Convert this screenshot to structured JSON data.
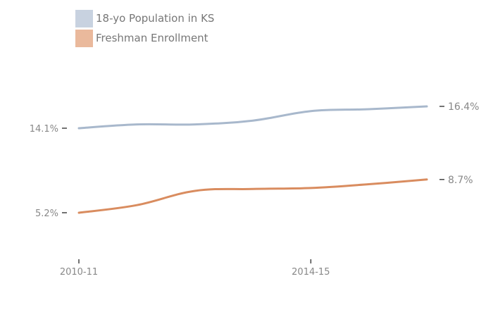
{
  "chart_data": {
    "type": "line",
    "title": "",
    "xlabel": "",
    "ylabel": "",
    "x": [
      2010,
      2011,
      2012,
      2013,
      2014,
      2015,
      2016
    ],
    "x_tick_values": [
      2010,
      2014
    ],
    "x_tick_labels": [
      "2010-11",
      "2014-15"
    ],
    "xlim": [
      2010,
      2016
    ],
    "y_tick_values": [
      5.2,
      14.1
    ],
    "y_tick_labels": [
      "5.2%",
      "14.1%"
    ],
    "ylim": [
      0.3,
      18.7
    ],
    "grid": false,
    "legend_position": "top-left",
    "series": [
      {
        "name": "18-yo Population in KS",
        "color": "#a8b8cc",
        "legend_color": "#c8d2e0",
        "values": [
          14.1,
          14.5,
          14.5,
          14.9,
          15.9,
          16.1,
          16.4
        ],
        "end_label": "16.4%"
      },
      {
        "name": "Freshman Enrollment",
        "color": "#d98c5f",
        "legend_color": "#eab99c",
        "values": [
          5.2,
          6.0,
          7.5,
          7.7,
          7.8,
          8.2,
          8.7
        ],
        "end_label": "8.7%"
      }
    ]
  }
}
